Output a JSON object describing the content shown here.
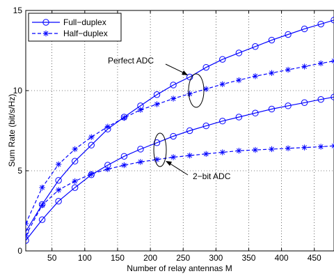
{
  "chart_data": {
    "type": "line",
    "xlabel": "Number of relay antennas M",
    "ylabel": "Sum Rate (bit/s/Hz)",
    "xlim": [
      10,
      480
    ],
    "ylim": [
      0,
      15
    ],
    "xticks": [
      50,
      100,
      150,
      200,
      250,
      300,
      350,
      400,
      450
    ],
    "yticks": [
      0,
      5,
      10,
      15
    ],
    "grid": true,
    "legend_position": "top-left",
    "line_color": "#0000ff",
    "x": [
      10,
      35,
      60,
      85,
      110,
      135,
      160,
      185,
      210,
      235,
      260,
      285,
      310,
      335,
      360,
      385,
      410,
      435,
      460,
      480
    ],
    "series": [
      {
        "name": "Full−duplex",
        "marker": "circle",
        "dash": "solid",
        "values": [
          1.2,
          2.9,
          4.4,
          5.6,
          6.6,
          7.6,
          8.35,
          9.05,
          9.75,
          10.35,
          10.85,
          11.45,
          11.95,
          12.35,
          12.75,
          13.15,
          13.5,
          13.85,
          14.15,
          14.4
        ]
      },
      {
        "name": "Half−duplex",
        "marker": "star",
        "dash": "dashed",
        "values": [
          1.7,
          3.95,
          5.4,
          6.35,
          7.1,
          7.75,
          8.3,
          8.8,
          9.15,
          9.5,
          9.8,
          10.1,
          10.4,
          10.65,
          10.9,
          11.1,
          11.3,
          11.5,
          11.7,
          11.85
        ]
      },
      {
        "name": "Full−duplex",
        "marker": "circle",
        "dash": "solid",
        "values": [
          0.65,
          1.95,
          3.1,
          3.95,
          4.75,
          5.35,
          5.9,
          6.35,
          6.75,
          7.15,
          7.5,
          7.8,
          8.1,
          8.35,
          8.6,
          8.85,
          9.05,
          9.25,
          9.45,
          9.6
        ]
      },
      {
        "name": "Half−duplex",
        "marker": "star",
        "dash": "dashed",
        "values": [
          0.95,
          2.85,
          3.8,
          4.35,
          4.8,
          5.1,
          5.35,
          5.55,
          5.7,
          5.85,
          5.95,
          6.05,
          6.15,
          6.25,
          6.3,
          6.35,
          6.4,
          6.45,
          6.5,
          6.55
        ]
      }
    ],
    "annotations": [
      {
        "text": "Perfect ADC",
        "x": 258,
        "y": 10.0
      },
      {
        "text": "2−bit ADC",
        "x": 213,
        "y": 6.2
      }
    ]
  }
}
